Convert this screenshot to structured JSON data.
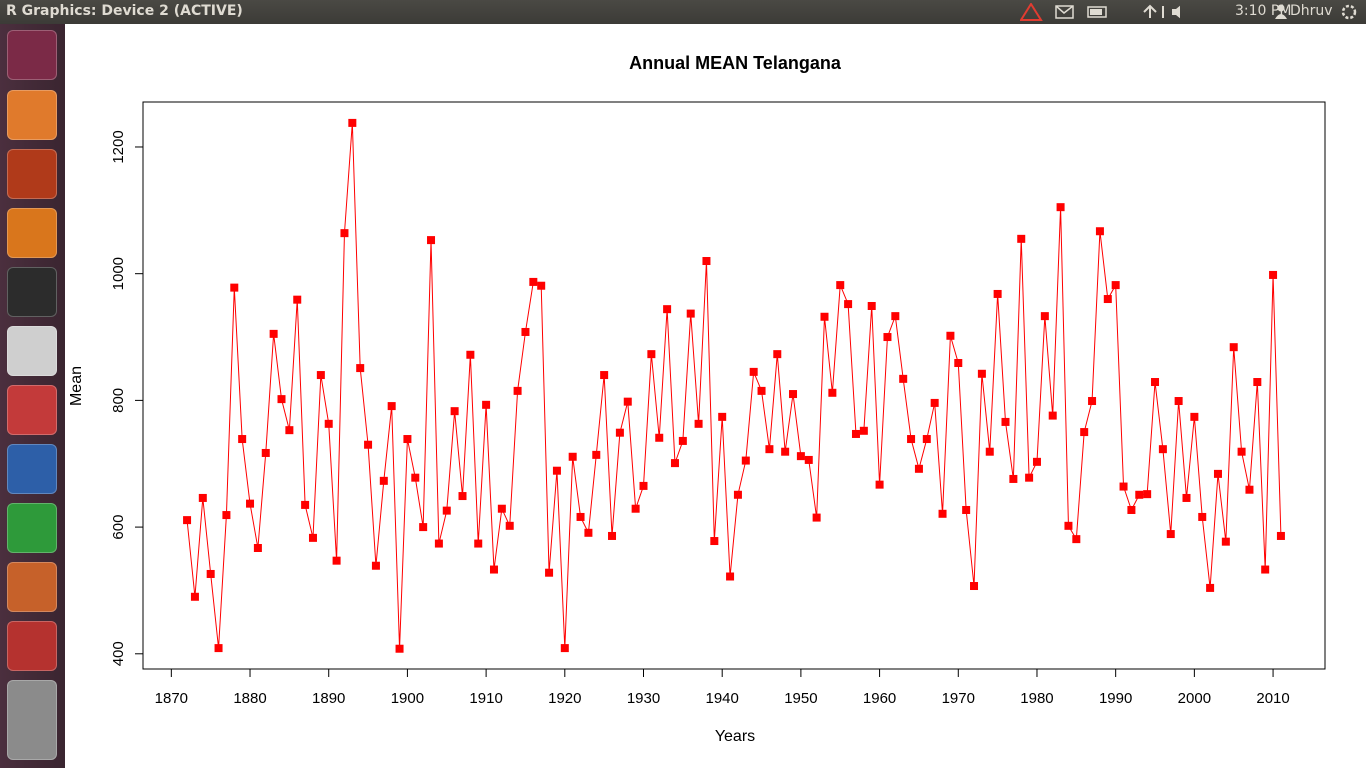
{
  "window": {
    "title": "R Graphics: Device 2 (ACTIVE)",
    "time": "3:10 PM",
    "user": "Dhruv"
  },
  "chart_data": {
    "type": "line",
    "title": "Annual MEAN Telangana",
    "x_label": "Years",
    "y_label": "Mean",
    "color": "#ff0000",
    "marker": "square",
    "x": [
      1872,
      1873,
      1874,
      1875,
      1876,
      1877,
      1878,
      1879,
      1880,
      1881,
      1882,
      1883,
      1884,
      1885,
      1886,
      1887,
      1888,
      1889,
      1890,
      1891,
      1892,
      1893,
      1894,
      1895,
      1896,
      1897,
      1898,
      1899,
      1900,
      1901,
      1902,
      1903,
      1904,
      1905,
      1906,
      1907,
      1908,
      1909,
      1910,
      1911,
      1912,
      1913,
      1914,
      1915,
      1916,
      1917,
      1918,
      1919,
      1920,
      1921,
      1922,
      1923,
      1924,
      1925,
      1926,
      1927,
      1928,
      1929,
      1930,
      1931,
      1932,
      1933,
      1934,
      1935,
      1936,
      1937,
      1938,
      1939,
      1940,
      1941,
      1942,
      1943,
      1944,
      1945,
      1946,
      1947,
      1948,
      1949,
      1950,
      1951,
      1952,
      1953,
      1954,
      1955,
      1956,
      1957,
      1958,
      1959,
      1960,
      1961,
      1962,
      1963,
      1964,
      1965,
      1966,
      1967,
      1968,
      1969,
      1970,
      1971,
      1972,
      1973,
      1974,
      1975,
      1976,
      1977,
      1978,
      1979,
      1980,
      1981,
      1982,
      1983,
      1984,
      1985,
      1986,
      1987,
      1988,
      1989,
      1990,
      1991,
      1992,
      1993,
      1994,
      1995,
      1996,
      1997,
      1998,
      1999,
      2000,
      2001,
      2002,
      2003,
      2004,
      2005,
      2006,
      2007,
      2008,
      2009,
      2010,
      2011
    ],
    "values": [
      611,
      490,
      646,
      526,
      409,
      619,
      978,
      739,
      637,
      567,
      717,
      905,
      802,
      753,
      959,
      635,
      583,
      840,
      763,
      547,
      1064,
      1238,
      851,
      730,
      539,
      673,
      791,
      408,
      739,
      678,
      600,
      1053,
      574,
      626,
      783,
      649,
      872,
      574,
      793,
      533,
      629,
      602,
      815,
      908,
      987,
      981,
      528,
      689,
      409,
      711,
      616,
      591,
      714,
      840,
      586,
      749,
      798,
      629,
      665,
      873,
      741,
      944,
      701,
      736,
      937,
      763,
      1020,
      578,
      774,
      522,
      651,
      705,
      845,
      815,
      723,
      873,
      719,
      810,
      712,
      706,
      615,
      932,
      812,
      982,
      952,
      747,
      752,
      949,
      667,
      900,
      933,
      834,
      739,
      692,
      739,
      796,
      621,
      902,
      859,
      627,
      507,
      842,
      719,
      968,
      766,
      676,
      1055,
      678,
      703,
      933,
      776,
      1105,
      602,
      581,
      750,
      799,
      1067,
      960,
      982,
      664,
      627,
      651,
      652,
      829,
      723,
      589,
      799,
      646,
      774,
      616,
      504,
      684,
      577,
      884,
      719,
      659,
      829,
      533,
      998,
      586
    ],
    "xlim": [
      1866.4,
      2016.6
    ],
    "ylim": [
      376,
      1271
    ],
    "xticks": [
      1870,
      1880,
      1890,
      1900,
      1910,
      1920,
      1930,
      1940,
      1950,
      1960,
      1970,
      1980,
      1990,
      2000,
      2010
    ],
    "yticks": [
      400,
      600,
      800,
      1000,
      1200
    ]
  }
}
